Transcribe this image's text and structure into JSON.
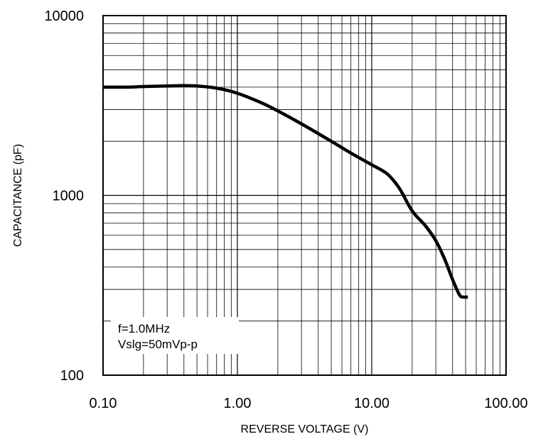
{
  "chart_data": {
    "type": "line",
    "title": "",
    "xlabel": "REVERSE VOLTAGE (V)",
    "ylabel": "CAPACITANCE (pF)",
    "x_scale": "log",
    "y_scale": "log",
    "xlim": [
      0.1,
      100
    ],
    "ylim": [
      100,
      10000
    ],
    "x_tick_labels": [
      "0.10",
      "1.00",
      "10.00",
      "100.00"
    ],
    "y_tick_labels": [
      "100",
      "1000",
      "10000"
    ],
    "grid": true,
    "annotations": [
      "f=1.0MHz",
      "Vslg=50mVp-p"
    ],
    "series": [
      {
        "color": "#000000",
        "x": [
          0.1,
          0.15,
          0.2,
          0.3,
          0.4,
          0.5,
          0.7,
          1.0,
          1.5,
          2.0,
          3.0,
          5.0,
          7.0,
          10.0,
          13.0,
          16.0,
          20.0,
          25.0,
          30.0,
          35.0,
          40.0,
          45.0,
          48.0,
          52.0
        ],
        "y": [
          4000,
          4000,
          4030,
          4060,
          4080,
          4060,
          3950,
          3700,
          3280,
          2950,
          2500,
          2000,
          1720,
          1480,
          1320,
          1100,
          820,
          680,
          560,
          440,
          340,
          280,
          272,
          272
        ]
      }
    ]
  }
}
